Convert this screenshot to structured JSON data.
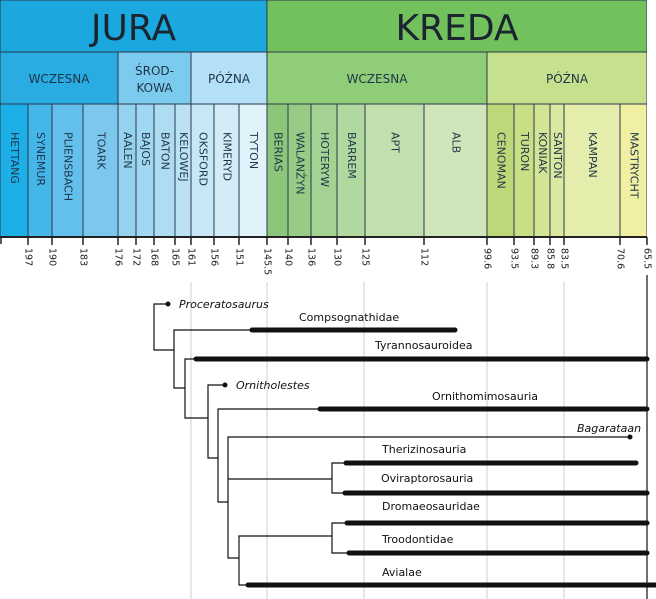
{
  "periods": [
    {
      "label": "JURA",
      "color": "#1ba8df"
    },
    {
      "label": "KREDA",
      "color": "#72c15d"
    }
  ],
  "epochs": [
    {
      "label": "WCZESNA",
      "color": "#29ace2"
    },
    {
      "label": "ŚROD-",
      "label2": "KOWA",
      "color": "#7ccbef"
    },
    {
      "label": "PÓŹNA",
      "color": "#b3e0f6"
    },
    {
      "label": "WCZESNA",
      "color": "#8fcd79"
    },
    {
      "label": "PÓŹNA",
      "color": "#c6e18d"
    }
  ],
  "stages": [
    {
      "label": "HETTANG",
      "color": "#1db0e8"
    },
    {
      "label": "SYNEMUR",
      "color": "#44b6e8"
    },
    {
      "label": "PLIENSBACH",
      "color": "#63bfec"
    },
    {
      "label": "TOARK",
      "color": "#7cc7ee"
    },
    {
      "label": "AALEN",
      "color": "#94d2f0"
    },
    {
      "label": "BAJOS",
      "color": "#a0d7f2"
    },
    {
      "label": "BATON",
      "color": "#aedcf3"
    },
    {
      "label": "KELOWEJ",
      "color": "#bbe1f4"
    },
    {
      "label": "OKSFORD",
      "color": "#c7e7f6"
    },
    {
      "label": "KIMERYD",
      "color": "#d3ecf8"
    },
    {
      "label": "TYTON",
      "color": "#e0f2fa"
    },
    {
      "label": "BERIAS",
      "color": "#8cc67a"
    },
    {
      "label": "WALANŻYN",
      "color": "#98cc86"
    },
    {
      "label": "HOTERYW",
      "color": "#a4d293"
    },
    {
      "label": "BARREM",
      "color": "#b0d89f"
    },
    {
      "label": "APT",
      "color": "#c2e0ae"
    },
    {
      "label": "ALB",
      "color": "#cfe6ba"
    },
    {
      "label": "CENOMAN",
      "color": "#bcd878"
    },
    {
      "label": "TURON",
      "color": "#c9df86"
    },
    {
      "label": "KONIAK",
      "color": "#d3e594"
    },
    {
      "label": "SANTON",
      "color": "#dbe99f"
    },
    {
      "label": "KAMPAN",
      "color": "#e5edac"
    },
    {
      "label": "MASTRYCHT",
      "color": "#f0efa2"
    }
  ],
  "ticks": [
    "197",
    "190",
    "183",
    "176",
    "172",
    "168",
    "165",
    "161",
    "156",
    "151",
    "145.5",
    "140",
    "136",
    "130",
    "125",
    "112",
    "99.6",
    "93.5",
    "89.3",
    "85.8",
    "83.5",
    "70.6",
    "65.5"
  ],
  "tree": {
    "proceratosaurus": "Proceratosaurus",
    "compsognathidae": "Compsognathidae",
    "tyrannosauroidea": "Tyrannosauroidea",
    "ornitholestes": "Ornitholestes",
    "ornithomimosauria": "Ornithomimosauria",
    "bagaraatan": "Bagarataan",
    "therizinosauria": "Therizinosauria",
    "oviraptorosauria": "Oviraptorosauria",
    "dromaeosauridae": "Dromaeosauridae",
    "troodontidae": "Troodontidae",
    "avialae": "Avialae"
  }
}
